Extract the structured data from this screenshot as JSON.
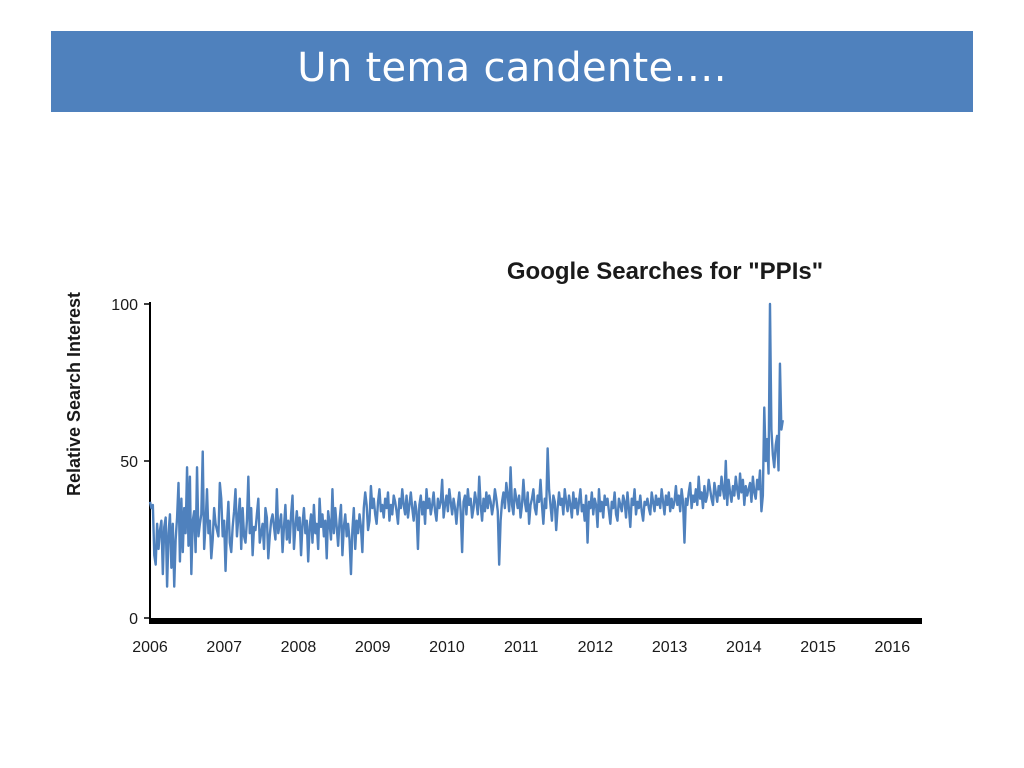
{
  "slide": {
    "title": "Un tema candente…."
  },
  "colors": {
    "title_bar": "#4f81bd",
    "series_line": "#4f81bd",
    "axis": "#000000"
  },
  "chart_data": {
    "type": "line",
    "title": "Google Searches for \"PPIs\"",
    "xlabel": "",
    "ylabel": "Relative Search Interest",
    "xlim": [
      2006,
      2016.4
    ],
    "ylim": [
      0,
      100
    ],
    "x_ticks": [
      "2006",
      "2007",
      "2008",
      "2009",
      "2010",
      "2011",
      "2012",
      "2013",
      "2014",
      "2015",
      "2016"
    ],
    "y_ticks": [
      "0",
      "50",
      "100"
    ],
    "grid": false,
    "legend": "none",
    "series": [
      {
        "x_start": 2006,
        "x_step": 0.0192,
        "values": [
          37,
          35,
          36,
          20,
          17,
          30,
          22,
          28,
          31,
          14,
          29,
          32,
          10,
          27,
          33,
          16,
          30,
          10,
          25,
          32,
          43,
          18,
          38,
          21,
          35,
          27,
          48,
          23,
          45,
          14,
          31,
          34,
          21,
          48,
          26,
          30,
          33,
          53,
          22,
          30,
          41,
          27,
          31,
          19,
          25,
          35,
          30,
          28,
          26,
          43,
          38,
          26,
          31,
          15,
          29,
          37,
          24,
          21,
          29,
          34,
          41,
          26,
          32,
          38,
          22,
          35,
          26,
          24,
          31,
          45,
          27,
          35,
          20,
          29,
          28,
          33,
          38,
          24,
          27,
          30,
          22,
          35,
          32,
          19,
          26,
          31,
          33,
          29,
          25,
          41,
          27,
          30,
          33,
          21,
          29,
          36,
          25,
          31,
          24,
          33,
          39,
          22,
          29,
          34,
          28,
          32,
          20,
          30,
          35,
          27,
          31,
          18,
          29,
          33,
          24,
          36,
          27,
          30,
          22,
          38,
          29,
          33,
          26,
          31,
          19,
          34,
          30,
          25,
          41,
          27,
          35,
          29,
          23,
          31,
          36,
          20,
          29,
          33,
          26,
          30,
          25,
          14,
          28,
          35,
          22,
          31,
          27,
          33,
          29,
          21,
          35,
          40,
          36,
          28,
          31,
          42,
          35,
          38,
          33,
          30,
          37,
          41,
          34,
          36,
          32,
          38,
          35,
          40,
          31,
          36,
          33,
          39,
          37,
          34,
          30,
          38,
          35,
          41,
          36,
          33,
          39,
          32,
          36,
          40,
          35,
          31,
          37,
          34,
          22,
          36,
          39,
          33,
          37,
          30,
          41,
          35,
          38,
          33,
          36,
          40,
          34,
          31,
          38,
          35,
          37,
          44,
          32,
          36,
          39,
          34,
          41,
          37,
          33,
          38,
          35,
          30,
          36,
          40,
          34,
          21,
          37,
          39,
          33,
          41,
          36,
          38,
          32,
          35,
          40,
          37,
          33,
          45,
          36,
          31,
          38,
          34,
          40,
          35,
          39,
          37,
          33,
          36,
          41,
          38,
          34,
          17,
          31,
          37,
          40,
          35,
          43,
          39,
          34,
          48,
          36,
          33,
          41,
          38,
          35,
          39,
          32,
          36,
          44,
          37,
          34,
          40,
          30,
          36,
          38,
          41,
          35,
          33,
          39,
          37,
          44,
          36,
          30,
          38,
          35,
          54,
          41,
          36,
          31,
          39,
          37,
          28,
          35,
          40,
          36,
          38,
          33,
          41,
          37,
          34,
          39,
          36,
          32,
          40,
          35,
          38,
          33,
          37,
          41,
          34,
          36,
          31,
          39,
          24,
          37,
          35,
          40,
          33,
          38,
          36,
          29,
          41,
          34,
          37,
          32,
          39,
          36,
          38,
          34,
          30,
          37,
          35,
          40,
          33,
          31,
          38,
          36,
          34,
          39,
          37,
          32,
          40,
          35,
          29,
          38,
          36,
          41,
          33,
          37,
          35,
          39,
          34,
          31,
          37,
          36,
          38,
          35,
          33,
          40,
          37,
          34,
          39,
          36,
          38,
          35,
          41,
          37,
          33,
          39,
          36,
          40,
          34,
          38,
          35,
          37,
          42,
          36,
          39,
          34,
          41,
          37,
          24,
          38,
          36,
          40,
          43,
          35,
          39,
          37,
          41,
          36,
          45,
          38,
          40,
          35,
          42,
          37,
          39,
          44,
          41,
          38,
          36,
          43,
          40,
          37,
          42,
          39,
          45,
          41,
          38,
          50,
          36,
          44,
          40,
          37,
          42,
          39,
          45,
          41,
          38,
          46,
          40,
          44,
          36,
          42,
          39,
          41,
          43,
          37,
          45,
          40,
          38,
          44,
          41,
          47,
          34,
          39,
          67,
          50,
          57,
          46,
          100,
          60,
          52,
          48,
          55,
          58,
          47,
          81,
          60,
          63
        ]
      }
    ]
  }
}
